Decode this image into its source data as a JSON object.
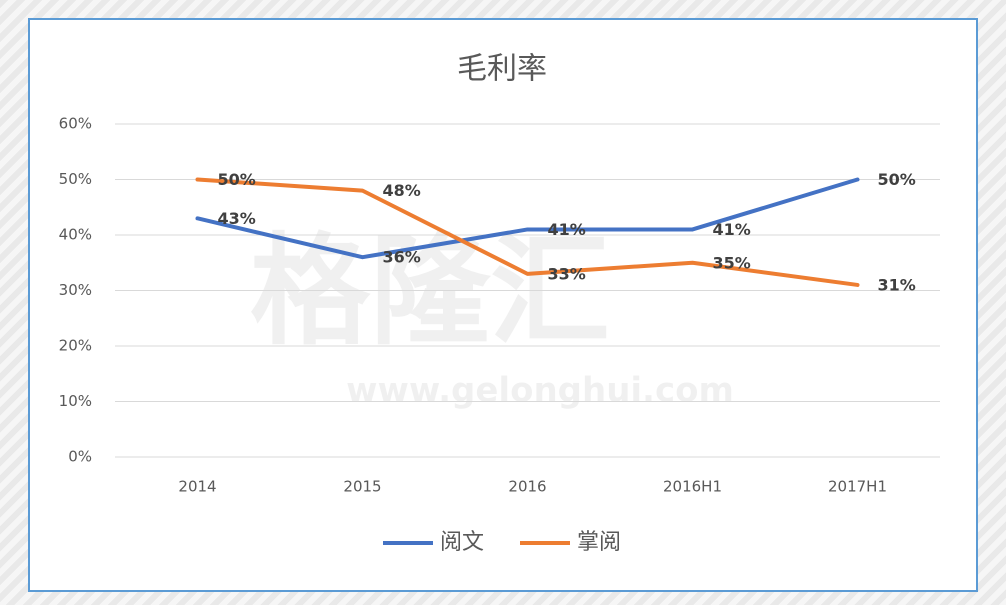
{
  "chart_data": {
    "type": "line",
    "title": "毛利率",
    "categories": [
      "2014",
      "2015",
      "2016",
      "2016H1",
      "2017H1"
    ],
    "series": [
      {
        "name": "阅文",
        "color": "#4472c4",
        "values": [
          43,
          36,
          41,
          41,
          50
        ],
        "value_labels": [
          "43%",
          "36%",
          "41%",
          "41%",
          "50%"
        ]
      },
      {
        "name": "掌阅",
        "color": "#ed7d31",
        "values": [
          50,
          48,
          33,
          35,
          31
        ],
        "value_labels": [
          "50%",
          "48%",
          "33%",
          "35%",
          "31%"
        ]
      }
    ],
    "ylim": [
      0,
      60
    ],
    "yticks": [
      {
        "value": 0,
        "label": "0%"
      },
      {
        "value": 10,
        "label": "10%"
      },
      {
        "value": 20,
        "label": "20%"
      },
      {
        "value": 30,
        "label": "30%"
      },
      {
        "value": 40,
        "label": "40%"
      },
      {
        "value": 50,
        "label": "50%"
      },
      {
        "value": 60,
        "label": "60%"
      }
    ],
    "grid": true,
    "legend": "bottom",
    "watermark": [
      "格隆汇",
      "www.gelonghui.com"
    ]
  }
}
